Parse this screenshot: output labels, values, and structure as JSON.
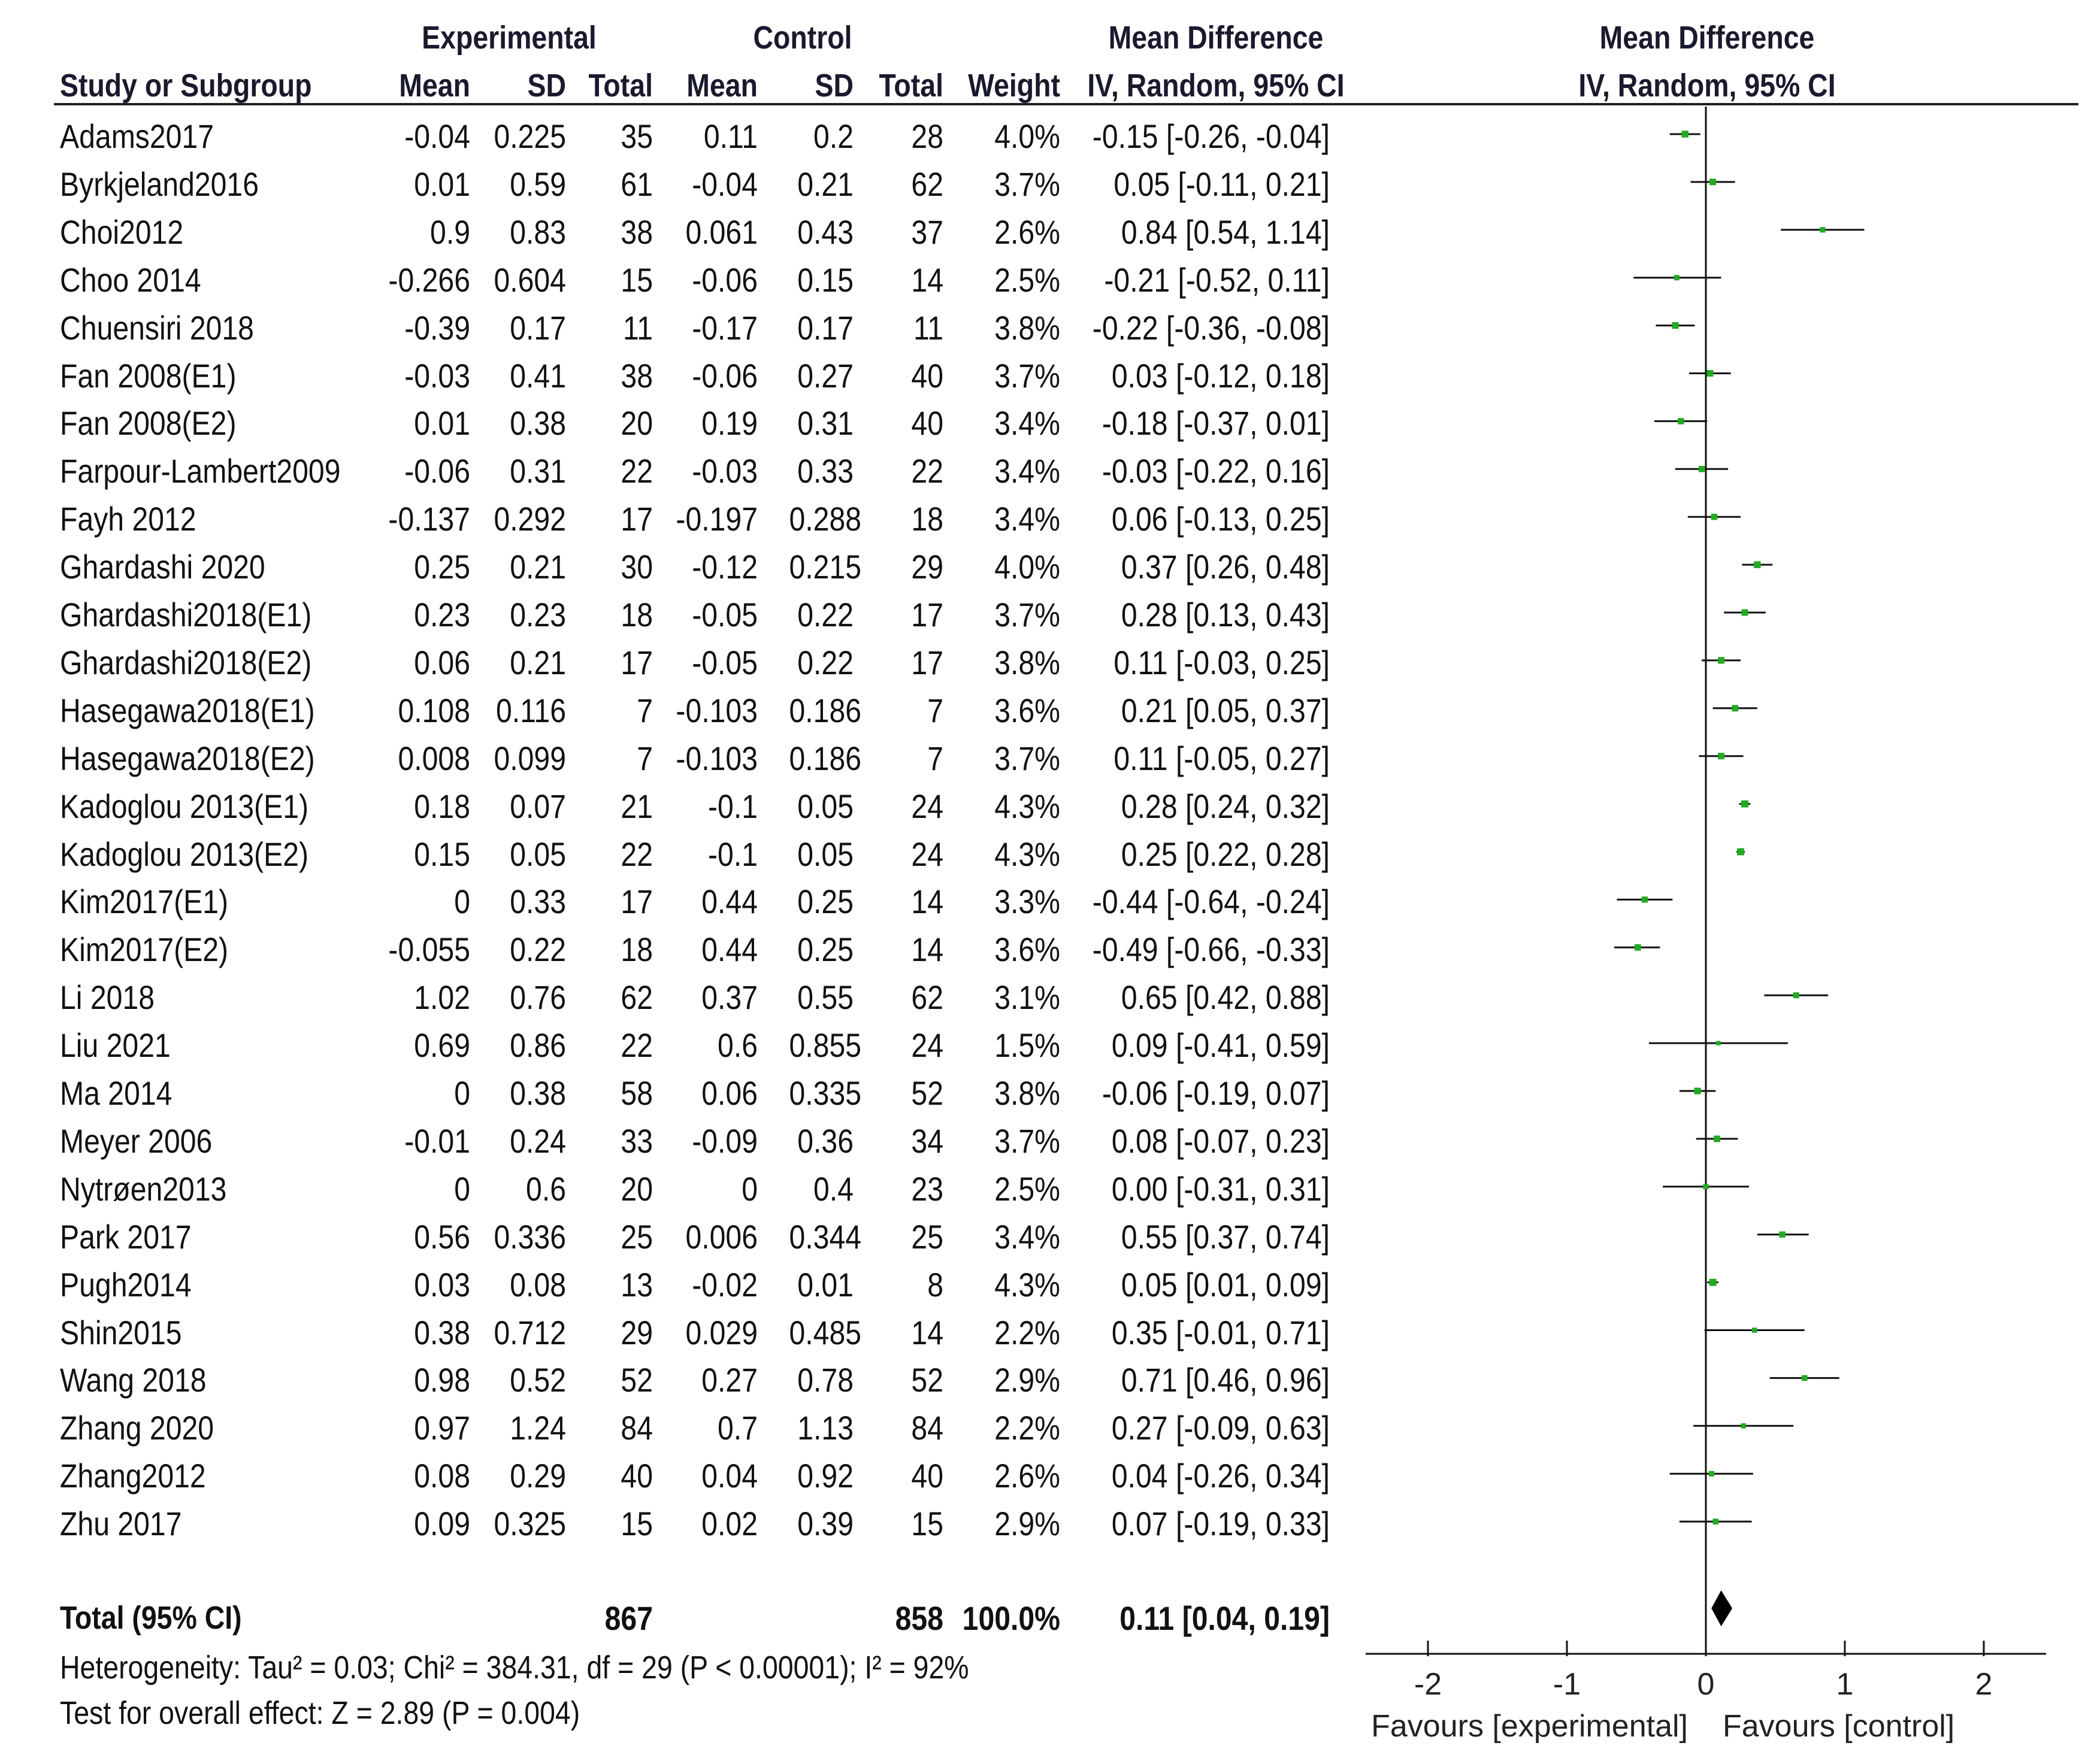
{
  "chart_data": {
    "type": "forest",
    "headers": {
      "group_experimental": "Experimental",
      "group_control": "Control",
      "group_md": "Mean Difference",
      "plot_title": "Mean Difference",
      "study": "Study or Subgroup",
      "mean_e": "Mean",
      "sd_e": "SD",
      "total_e": "Total",
      "mean_c": "Mean",
      "sd_c": "SD",
      "total_c": "Total",
      "weight": "Weight",
      "method": "IV, Random, 95% CI",
      "plot_method": "IV, Random, 95% CI"
    },
    "studies": [
      {
        "name": "Adams2017",
        "mean_e": "-0.04",
        "sd_e": "0.225",
        "n_e": "35",
        "mean_c": "0.11",
        "sd_c": "0.2",
        "n_c": "28",
        "weight": "4.0%",
        "ci_text": "-0.15 [-0.26, -0.04]",
        "md": -0.15,
        "lo": -0.26,
        "hi": -0.04
      },
      {
        "name": "Byrkjeland2016",
        "mean_e": "0.01",
        "sd_e": "0.59",
        "n_e": "61",
        "mean_c": "-0.04",
        "sd_c": "0.21",
        "n_c": "62",
        "weight": "3.7%",
        "ci_text": "0.05 [-0.11, 0.21]",
        "md": 0.05,
        "lo": -0.11,
        "hi": 0.21
      },
      {
        "name": "Choi2012",
        "mean_e": "0.9",
        "sd_e": "0.83",
        "n_e": "38",
        "mean_c": "0.061",
        "sd_c": "0.43",
        "n_c": "37",
        "weight": "2.6%",
        "ci_text": "0.84 [0.54, 1.14]",
        "md": 0.84,
        "lo": 0.54,
        "hi": 1.14
      },
      {
        "name": "Choo 2014",
        "mean_e": "-0.266",
        "sd_e": "0.604",
        "n_e": "15",
        "mean_c": "-0.06",
        "sd_c": "0.15",
        "n_c": "14",
        "weight": "2.5%",
        "ci_text": "-0.21 [-0.52, 0.11]",
        "md": -0.21,
        "lo": -0.52,
        "hi": 0.11
      },
      {
        "name": "Chuensiri 2018",
        "mean_e": "-0.39",
        "sd_e": "0.17",
        "n_e": "11",
        "mean_c": "-0.17",
        "sd_c": "0.17",
        "n_c": "11",
        "weight": "3.8%",
        "ci_text": "-0.22 [-0.36, -0.08]",
        "md": -0.22,
        "lo": -0.36,
        "hi": -0.08
      },
      {
        "name": "Fan 2008(E1)",
        "mean_e": "-0.03",
        "sd_e": "0.41",
        "n_e": "38",
        "mean_c": "-0.06",
        "sd_c": "0.27",
        "n_c": "40",
        "weight": "3.7%",
        "ci_text": "0.03 [-0.12, 0.18]",
        "md": 0.03,
        "lo": -0.12,
        "hi": 0.18
      },
      {
        "name": "Fan 2008(E2)",
        "mean_e": "0.01",
        "sd_e": "0.38",
        "n_e": "20",
        "mean_c": "0.19",
        "sd_c": "0.31",
        "n_c": "40",
        "weight": "3.4%",
        "ci_text": "-0.18 [-0.37, 0.01]",
        "md": -0.18,
        "lo": -0.37,
        "hi": 0.01
      },
      {
        "name": "Farpour-Lambert2009",
        "mean_e": "-0.06",
        "sd_e": "0.31",
        "n_e": "22",
        "mean_c": "-0.03",
        "sd_c": "0.33",
        "n_c": "22",
        "weight": "3.4%",
        "ci_text": "-0.03 [-0.22, 0.16]",
        "md": -0.03,
        "lo": -0.22,
        "hi": 0.16
      },
      {
        "name": "Fayh 2012",
        "mean_e": "-0.137",
        "sd_e": "0.292",
        "n_e": "17",
        "mean_c": "-0.197",
        "sd_c": "0.288",
        "n_c": "18",
        "weight": "3.4%",
        "ci_text": "0.06 [-0.13, 0.25]",
        "md": 0.06,
        "lo": -0.13,
        "hi": 0.25
      },
      {
        "name": "Ghardashi 2020",
        "mean_e": "0.25",
        "sd_e": "0.21",
        "n_e": "30",
        "mean_c": "-0.12",
        "sd_c": "0.215",
        "n_c": "29",
        "weight": "4.0%",
        "ci_text": "0.37 [0.26, 0.48]",
        "md": 0.37,
        "lo": 0.26,
        "hi": 0.48
      },
      {
        "name": "Ghardashi2018(E1)",
        "mean_e": "0.23",
        "sd_e": "0.23",
        "n_e": "18",
        "mean_c": "-0.05",
        "sd_c": "0.22",
        "n_c": "17",
        "weight": "3.7%",
        "ci_text": "0.28 [0.13, 0.43]",
        "md": 0.28,
        "lo": 0.13,
        "hi": 0.43
      },
      {
        "name": "Ghardashi2018(E2)",
        "mean_e": "0.06",
        "sd_e": "0.21",
        "n_e": "17",
        "mean_c": "-0.05",
        "sd_c": "0.22",
        "n_c": "17",
        "weight": "3.8%",
        "ci_text": "0.11 [-0.03, 0.25]",
        "md": 0.11,
        "lo": -0.03,
        "hi": 0.25
      },
      {
        "name": "Hasegawa2018(E1)",
        "mean_e": "0.108",
        "sd_e": "0.116",
        "n_e": "7",
        "mean_c": "-0.103",
        "sd_c": "0.186",
        "n_c": "7",
        "weight": "3.6%",
        "ci_text": "0.21 [0.05, 0.37]",
        "md": 0.21,
        "lo": 0.05,
        "hi": 0.37
      },
      {
        "name": "Hasegawa2018(E2)",
        "mean_e": "0.008",
        "sd_e": "0.099",
        "n_e": "7",
        "mean_c": "-0.103",
        "sd_c": "0.186",
        "n_c": "7",
        "weight": "3.7%",
        "ci_text": "0.11 [-0.05, 0.27]",
        "md": 0.11,
        "lo": -0.05,
        "hi": 0.27
      },
      {
        "name": "Kadoglou 2013(E1)",
        "mean_e": "0.18",
        "sd_e": "0.07",
        "n_e": "21",
        "mean_c": "-0.1",
        "sd_c": "0.05",
        "n_c": "24",
        "weight": "4.3%",
        "ci_text": "0.28 [0.24, 0.32]",
        "md": 0.28,
        "lo": 0.24,
        "hi": 0.32
      },
      {
        "name": "Kadoglou 2013(E2)",
        "mean_e": "0.15",
        "sd_e": "0.05",
        "n_e": "22",
        "mean_c": "-0.1",
        "sd_c": "0.05",
        "n_c": "24",
        "weight": "4.3%",
        "ci_text": "0.25 [0.22, 0.28]",
        "md": 0.25,
        "lo": 0.22,
        "hi": 0.28
      },
      {
        "name": "Kim2017(E1)",
        "mean_e": "0",
        "sd_e": "0.33",
        "n_e": "17",
        "mean_c": "0.44",
        "sd_c": "0.25",
        "n_c": "14",
        "weight": "3.3%",
        "ci_text": "-0.44 [-0.64, -0.24]",
        "md": -0.44,
        "lo": -0.64,
        "hi": -0.24
      },
      {
        "name": "Kim2017(E2)",
        "mean_e": "-0.055",
        "sd_e": "0.22",
        "n_e": "18",
        "mean_c": "0.44",
        "sd_c": "0.25",
        "n_c": "14",
        "weight": "3.6%",
        "ci_text": "-0.49 [-0.66, -0.33]",
        "md": -0.49,
        "lo": -0.66,
        "hi": -0.33
      },
      {
        "name": "Li 2018",
        "mean_e": "1.02",
        "sd_e": "0.76",
        "n_e": "62",
        "mean_c": "0.37",
        "sd_c": "0.55",
        "n_c": "62",
        "weight": "3.1%",
        "ci_text": "0.65 [0.42, 0.88]",
        "md": 0.65,
        "lo": 0.42,
        "hi": 0.88
      },
      {
        "name": "Liu 2021",
        "mean_e": "0.69",
        "sd_e": "0.86",
        "n_e": "22",
        "mean_c": "0.6",
        "sd_c": "0.855",
        "n_c": "24",
        "weight": "1.5%",
        "ci_text": "0.09 [-0.41, 0.59]",
        "md": 0.09,
        "lo": -0.41,
        "hi": 0.59
      },
      {
        "name": "Ma 2014",
        "mean_e": "0",
        "sd_e": "0.38",
        "n_e": "58",
        "mean_c": "0.06",
        "sd_c": "0.335",
        "n_c": "52",
        "weight": "3.8%",
        "ci_text": "-0.06 [-0.19, 0.07]",
        "md": -0.06,
        "lo": -0.19,
        "hi": 0.07
      },
      {
        "name": "Meyer 2006",
        "mean_e": "-0.01",
        "sd_e": "0.24",
        "n_e": "33",
        "mean_c": "-0.09",
        "sd_c": "0.36",
        "n_c": "34",
        "weight": "3.7%",
        "ci_text": "0.08 [-0.07, 0.23]",
        "md": 0.08,
        "lo": -0.07,
        "hi": 0.23
      },
      {
        "name": "Nytrøen2013",
        "mean_e": "0",
        "sd_e": "0.6",
        "n_e": "20",
        "mean_c": "0",
        "sd_c": "0.4",
        "n_c": "23",
        "weight": "2.5%",
        "ci_text": "0.00 [-0.31, 0.31]",
        "md": 0.0,
        "lo": -0.31,
        "hi": 0.31
      },
      {
        "name": "Park 2017",
        "mean_e": "0.56",
        "sd_e": "0.336",
        "n_e": "25",
        "mean_c": "0.006",
        "sd_c": "0.344",
        "n_c": "25",
        "weight": "3.4%",
        "ci_text": "0.55 [0.37, 0.74]",
        "md": 0.55,
        "lo": 0.37,
        "hi": 0.74
      },
      {
        "name": "Pugh2014",
        "mean_e": "0.03",
        "sd_e": "0.08",
        "n_e": "13",
        "mean_c": "-0.02",
        "sd_c": "0.01",
        "n_c": "8",
        "weight": "4.3%",
        "ci_text": "0.05 [0.01, 0.09]",
        "md": 0.05,
        "lo": 0.01,
        "hi": 0.09
      },
      {
        "name": "Shin2015",
        "mean_e": "0.38",
        "sd_e": "0.712",
        "n_e": "29",
        "mean_c": "0.029",
        "sd_c": "0.485",
        "n_c": "14",
        "weight": "2.2%",
        "ci_text": "0.35 [-0.01, 0.71]",
        "md": 0.35,
        "lo": -0.01,
        "hi": 0.71
      },
      {
        "name": "Wang 2018",
        "mean_e": "0.98",
        "sd_e": "0.52",
        "n_e": "52",
        "mean_c": "0.27",
        "sd_c": "0.78",
        "n_c": "52",
        "weight": "2.9%",
        "ci_text": "0.71 [0.46, 0.96]",
        "md": 0.71,
        "lo": 0.46,
        "hi": 0.96
      },
      {
        "name": "Zhang 2020",
        "mean_e": "0.97",
        "sd_e": "1.24",
        "n_e": "84",
        "mean_c": "0.7",
        "sd_c": "1.13",
        "n_c": "84",
        "weight": "2.2%",
        "ci_text": "0.27 [-0.09, 0.63]",
        "md": 0.27,
        "lo": -0.09,
        "hi": 0.63
      },
      {
        "name": "Zhang2012",
        "mean_e": "0.08",
        "sd_e": "0.29",
        "n_e": "40",
        "mean_c": "0.04",
        "sd_c": "0.92",
        "n_c": "40",
        "weight": "2.6%",
        "ci_text": "0.04 [-0.26, 0.34]",
        "md": 0.04,
        "lo": -0.26,
        "hi": 0.34
      },
      {
        "name": "Zhu 2017",
        "mean_e": "0.09",
        "sd_e": "0.325",
        "n_e": "15",
        "mean_c": "0.02",
        "sd_c": "0.39",
        "n_c": "15",
        "weight": "2.9%",
        "ci_text": "0.07 [-0.19, 0.33]",
        "md": 0.07,
        "lo": -0.19,
        "hi": 0.33
      }
    ],
    "total": {
      "label": "Total (95% CI)",
      "n_e": "867",
      "n_c": "858",
      "weight": "100.0%",
      "ci_text": "0.11 [0.04, 0.19]",
      "md": 0.11,
      "lo": 0.04,
      "hi": 0.19
    },
    "heterogeneity": "Heterogeneity: Tau² = 0.03; Chi² = 384.31, df = 29 (P < 0.00001); I² = 92%",
    "overall_effect": "Test for overall effect: Z = 2.89 (P = 0.004)",
    "axis": {
      "range": [
        -2.5,
        2.5
      ],
      "ticks": [
        -2,
        -1,
        0,
        1,
        2
      ],
      "tick_labels": [
        "-2",
        "-1",
        "0",
        "1",
        "2"
      ],
      "left_label": "Favours [experimental]",
      "right_label": "Favours [control]"
    },
    "colors": {
      "marker": "#22aa22",
      "line": "#111111",
      "diamond": "#000000"
    }
  }
}
